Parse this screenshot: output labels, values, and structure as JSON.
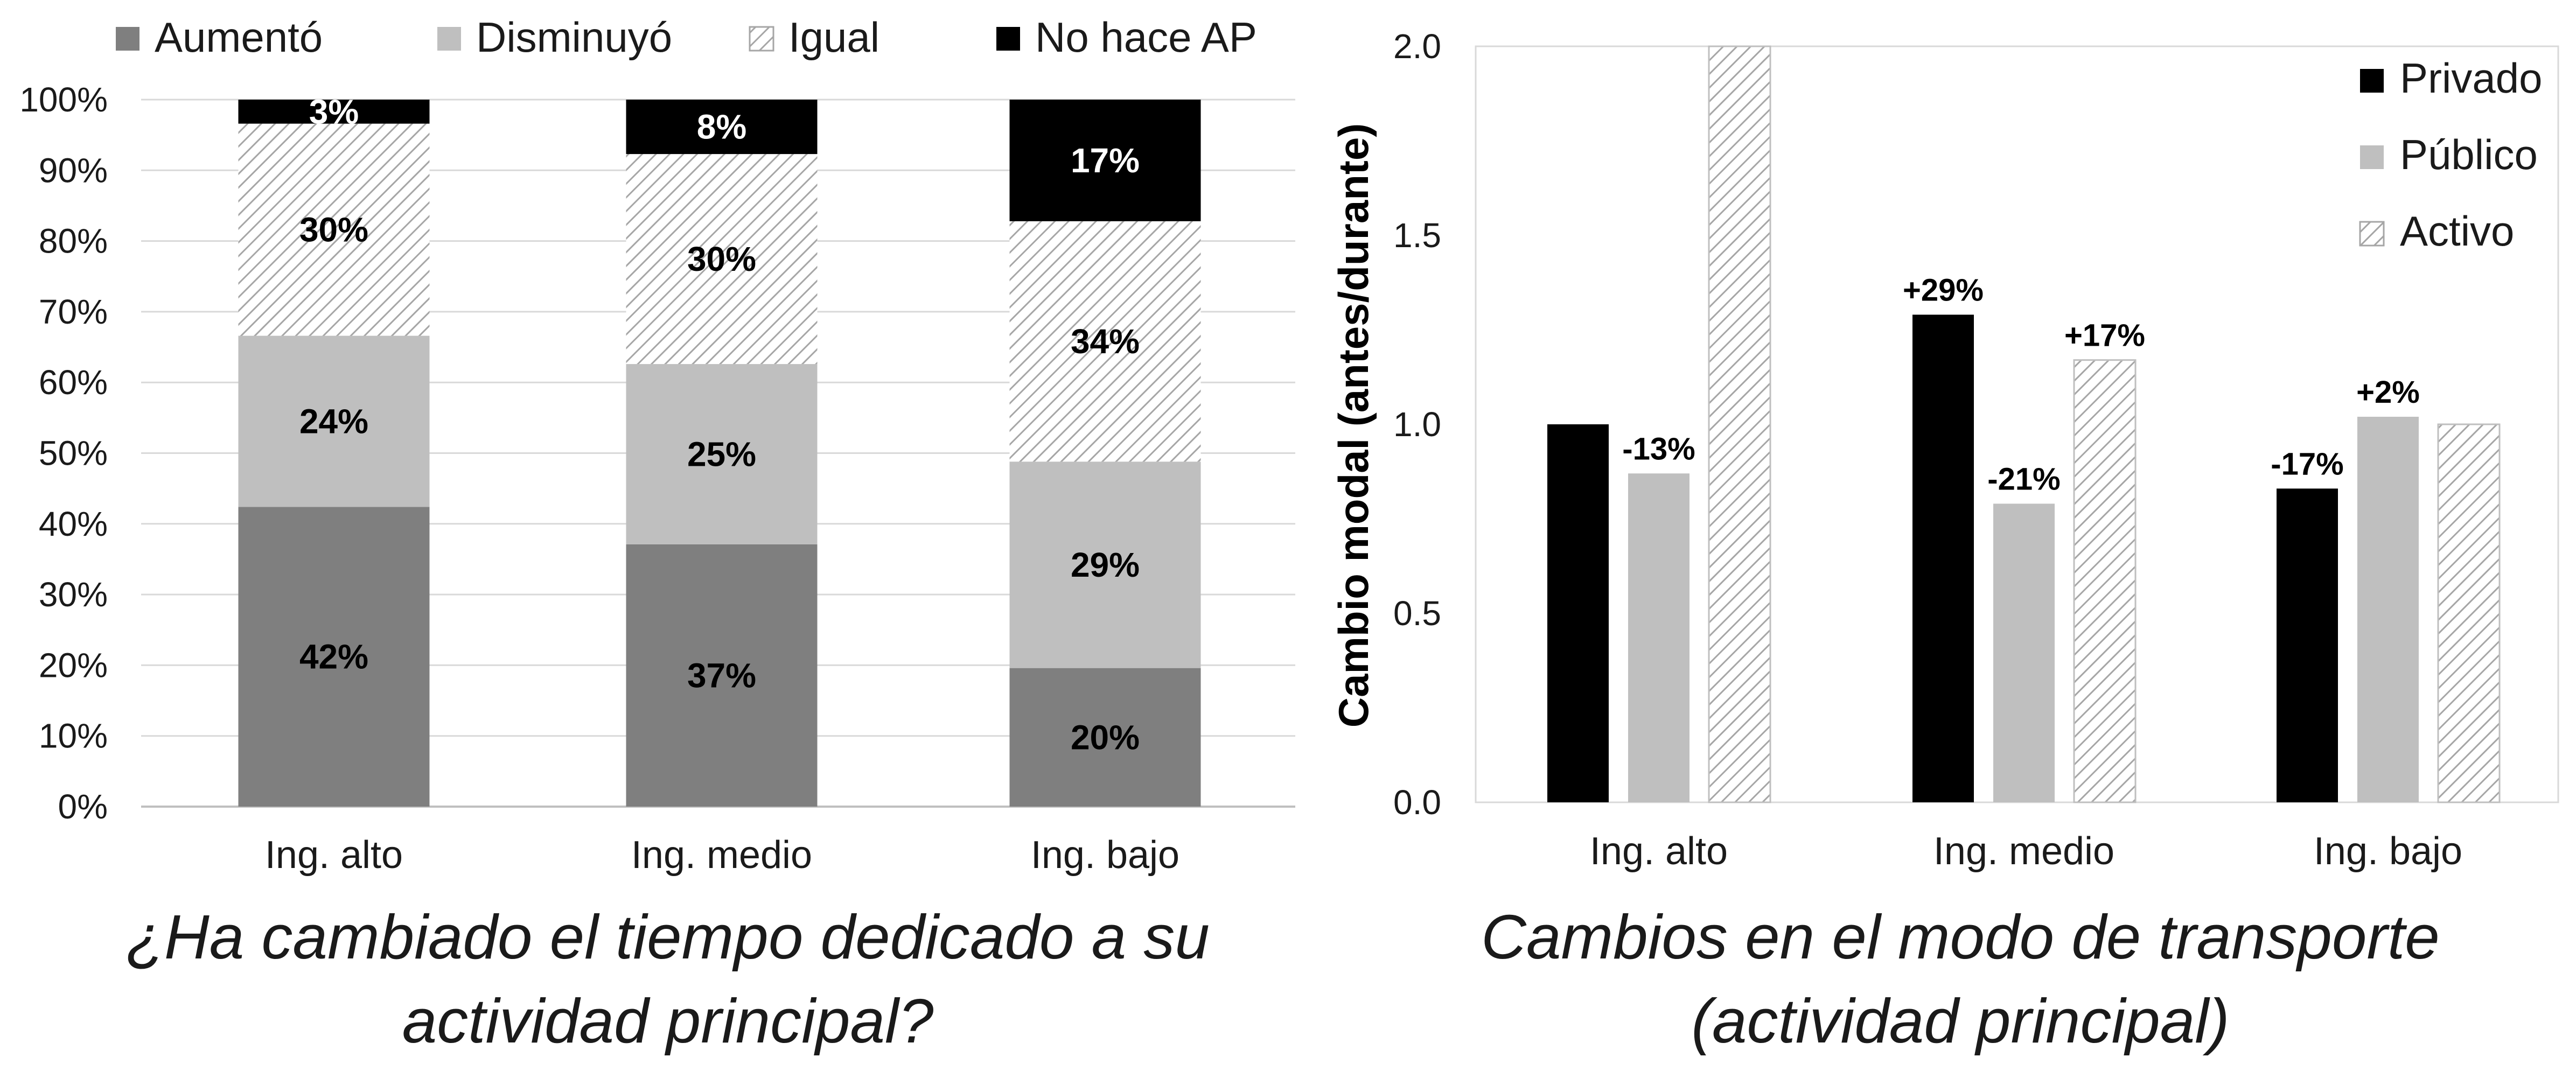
{
  "colors": {
    "aumento": "#7f7f7f",
    "disminuyo": "#bfbfbf",
    "igual_hatch": "#a6a6a6",
    "no_hace": "#000000",
    "privado": "#000000",
    "publico": "#bfbfbf",
    "activo_hatch": "#a6a6a6",
    "grid": "#d9d9d9",
    "axis": "#bfbfbf"
  },
  "chart_data": [
    {
      "type": "bar",
      "stacked": true,
      "title": "¿Ha cambiado el tiempo dedicado a su actividad principal?",
      "title_lines": [
        "¿Ha cambiado el tiempo dedicado a su",
        "actividad principal?"
      ],
      "categories": [
        "Ing. alto",
        "Ing. medio",
        "Ing. bajo"
      ],
      "series": [
        {
          "name": "Aumentó",
          "values": [
            42,
            37,
            20
          ],
          "raw": [
            42.4,
            37.1,
            19.6
          ],
          "labels": [
            "42%",
            "37%",
            "20%"
          ],
          "style": "solid",
          "color": "#7f7f7f"
        },
        {
          "name": "Disminuyó",
          "values": [
            24,
            25,
            29
          ],
          "raw": [
            24.2,
            25.5,
            29.2
          ],
          "labels": [
            "24%",
            "25%",
            "29%"
          ],
          "style": "solid",
          "color": "#bfbfbf"
        },
        {
          "name": "Igual",
          "values": [
            30,
            30,
            34
          ],
          "raw": [
            30.0,
            29.7,
            34.0
          ],
          "labels": [
            "30%",
            "30%",
            "34%"
          ],
          "style": "hatch",
          "color": "#a6a6a6"
        },
        {
          "name": "No hace AP",
          "values": [
            3,
            8,
            17
          ],
          "raw": [
            3.4,
            7.7,
            17.2
          ],
          "labels": [
            "3%",
            "8%",
            "17%"
          ],
          "style": "solid",
          "color": "#000000"
        }
      ],
      "ylim": [
        0,
        100
      ],
      "yticks": [
        "0%",
        "10%",
        "20%",
        "30%",
        "40%",
        "50%",
        "60%",
        "70%",
        "80%",
        "90%",
        "100%"
      ],
      "grid": true,
      "legend_position": "top"
    },
    {
      "type": "bar",
      "stacked": false,
      "title": "Cambios en el modo de transporte (actividad principal)",
      "title_lines": [
        "Cambios en el modo de transporte",
        "(actividad principal)"
      ],
      "ylabel": "Cambio modal (antes/durante)",
      "categories": [
        "Ing. alto",
        "Ing. medio",
        "Ing. bajo"
      ],
      "series": [
        {
          "name": "Privado",
          "values": [
            1.0,
            1.29,
            0.83
          ],
          "labels": [
            "",
            "+29%",
            "-17%"
          ],
          "style": "solid",
          "color": "#000000"
        },
        {
          "name": "Público",
          "values": [
            0.87,
            0.79,
            1.02
          ],
          "labels": [
            "-13%",
            "-21%",
            "+2%"
          ],
          "style": "solid",
          "color": "#bfbfbf"
        },
        {
          "name": "Activo",
          "values": [
            2.0,
            1.17,
            1.0
          ],
          "labels": [
            "",
            "+17%",
            ""
          ],
          "style": "hatch",
          "color": "#a6a6a6"
        }
      ],
      "ylim": [
        0,
        2.0
      ],
      "yticks": [
        "0.0",
        "0.5",
        "1.0",
        "1.5",
        "2.0"
      ],
      "grid": false,
      "legend_position": "top-right"
    }
  ]
}
